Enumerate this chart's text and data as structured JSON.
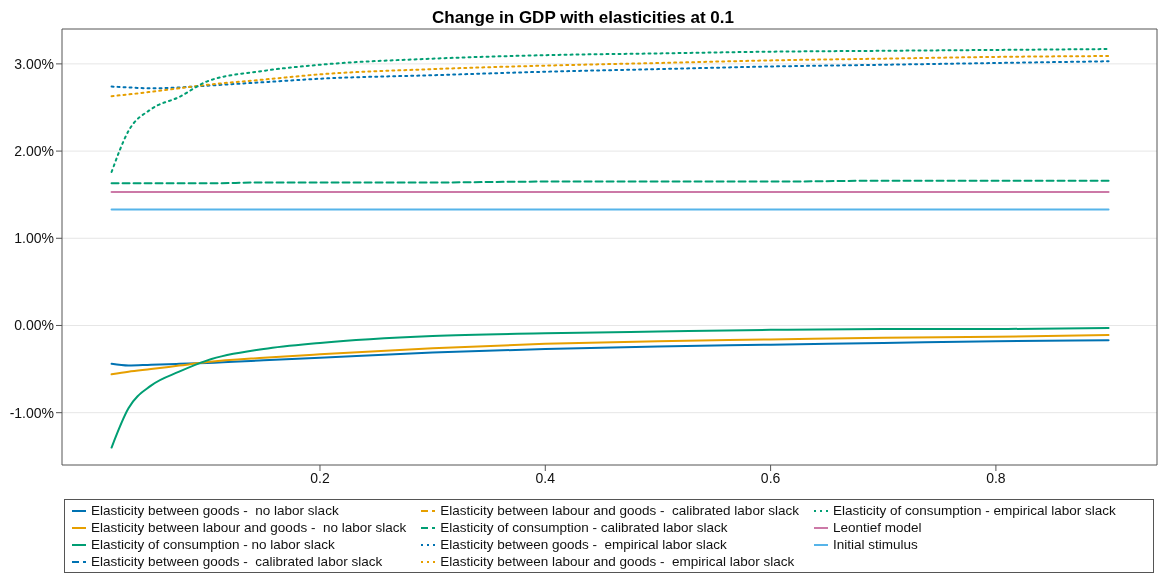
{
  "chart_data": {
    "type": "line",
    "title": "Change in GDP with elasticities at 0.1",
    "x": [
      0.015,
      0.03,
      0.05,
      0.075,
      0.1,
      0.15,
      0.2,
      0.3,
      0.4,
      0.5,
      0.6,
      0.7,
      0.8,
      0.9
    ],
    "xlim": [
      -0.029,
      0.943
    ],
    "xticks": [
      0.2,
      0.4,
      0.6,
      0.8
    ],
    "ylim": [
      -1.6,
      3.4
    ],
    "yticks": [
      {
        "value": -1,
        "label": "-1.00%"
      },
      {
        "value": 0,
        "label": "0.00%"
      },
      {
        "value": 1,
        "label": "1.00%"
      },
      {
        "value": 2,
        "label": "2.00%"
      },
      {
        "value": 3,
        "label": "3.00%"
      }
    ],
    "grid": "y",
    "legend": "bottom",
    "marker": "none",
    "series": [
      {
        "name": "Elasticity between goods -  no labor slack",
        "color": "#0072b2",
        "line_style": "solid",
        "values": [
          -0.44,
          -0.46,
          -0.45,
          -0.44,
          -0.43,
          -0.4,
          -0.37,
          -0.31,
          -0.27,
          -0.24,
          -0.22,
          -0.2,
          -0.18,
          -0.17
        ]
      },
      {
        "name": "Elasticity between labour and goods -  no labor slack",
        "color": "#e69f00",
        "line_style": "solid",
        "values": [
          -0.56,
          -0.53,
          -0.5,
          -0.46,
          -0.42,
          -0.37,
          -0.33,
          -0.26,
          -0.21,
          -0.18,
          -0.16,
          -0.14,
          -0.13,
          -0.11
        ]
      },
      {
        "name": "Elasticity of consumption - no labor slack",
        "color": "#009e73",
        "line_style": "solid",
        "values": [
          -1.4,
          -0.95,
          -0.69,
          -0.53,
          -0.4,
          -0.27,
          -0.2,
          -0.12,
          -0.09,
          -0.07,
          -0.05,
          -0.04,
          -0.04,
          -0.03
        ]
      },
      {
        "name": "Elasticity between goods -  calibrated labor slack",
        "color": "#0072b2",
        "line_style": "dashed",
        "values": [
          null,
          null,
          null,
          null,
          null,
          null,
          null,
          null,
          null,
          null,
          null,
          null,
          null,
          null
        ]
      },
      {
        "name": "Elasticity between labour and goods -  calibrated labor slack",
        "color": "#e69f00",
        "line_style": "dashed",
        "values": [
          null,
          null,
          null,
          null,
          null,
          null,
          null,
          null,
          null,
          null,
          null,
          null,
          null,
          null
        ]
      },
      {
        "name": "Elasticity of consumption - calibrated labor slack",
        "color": "#009e73",
        "line_style": "dashed",
        "values": [
          1.63,
          1.63,
          1.63,
          1.63,
          1.63,
          1.64,
          1.64,
          1.64,
          1.65,
          1.65,
          1.65,
          1.66,
          1.66,
          1.66
        ]
      },
      {
        "name": "Elasticity between goods -  empirical labor slack",
        "color": "#0072b2",
        "line_style": "dotted",
        "values": [
          2.74,
          2.73,
          2.72,
          2.73,
          2.75,
          2.79,
          2.83,
          2.87,
          2.91,
          2.94,
          2.97,
          2.99,
          3.01,
          3.03
        ]
      },
      {
        "name": "Elasticity between labour and goods -  empirical labor slack",
        "color": "#e69f00",
        "line_style": "dotted",
        "values": [
          2.63,
          2.65,
          2.68,
          2.72,
          2.76,
          2.82,
          2.88,
          2.94,
          2.98,
          3.01,
          3.04,
          3.06,
          3.08,
          3.09
        ]
      },
      {
        "name": "Elasticity of consumption - empirical labor slack",
        "color": "#009e73",
        "line_style": "dotted",
        "values": [
          1.76,
          2.23,
          2.48,
          2.62,
          2.8,
          2.92,
          2.99,
          3.06,
          3.1,
          3.12,
          3.14,
          3.15,
          3.16,
          3.17
        ]
      },
      {
        "name": "Leontief model",
        "color": "#cc79a7",
        "line_style": "solid",
        "values": [
          1.53,
          1.53,
          1.53,
          1.53,
          1.53,
          1.53,
          1.53,
          1.53,
          1.53,
          1.53,
          1.53,
          1.53,
          1.53,
          1.53
        ]
      },
      {
        "name": "Initial stimulus",
        "color": "#56b4e9",
        "line_style": "solid",
        "values": [
          1.33,
          1.33,
          1.33,
          1.33,
          1.33,
          1.33,
          1.33,
          1.33,
          1.33,
          1.33,
          1.33,
          1.33,
          1.33,
          1.33
        ]
      }
    ]
  }
}
